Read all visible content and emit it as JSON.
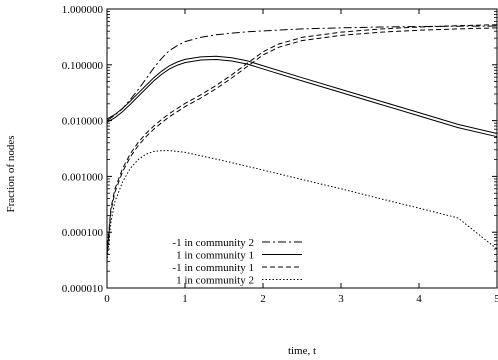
{
  "chart_data": {
    "type": "line",
    "xlabel": "time, t",
    "ylabel": "Fraction of nodes",
    "xlim": [
      0,
      5
    ],
    "ylim": [
      1e-05,
      1
    ],
    "yscale": "log",
    "grid": false,
    "legend_position": "bottom-left",
    "x_ticks": [
      "0",
      "1",
      "2",
      "3",
      "4",
      "5"
    ],
    "y_ticks": [
      "0.000010",
      "0.000100",
      "0.001000",
      "0.010000",
      "0.100000",
      "1.000000"
    ],
    "series": [
      {
        "name": "-1 in community 2",
        "dash": "dashdot",
        "points": [
          [
            0.0,
            0.01
          ],
          [
            0.1,
            0.0125
          ],
          [
            0.2,
            0.0165
          ],
          [
            0.3,
            0.024
          ],
          [
            0.4,
            0.036
          ],
          [
            0.5,
            0.056
          ],
          [
            0.6,
            0.088
          ],
          [
            0.7,
            0.13
          ],
          [
            0.8,
            0.18
          ],
          [
            0.9,
            0.22
          ],
          [
            1.0,
            0.26
          ],
          [
            1.2,
            0.31
          ],
          [
            1.4,
            0.345
          ],
          [
            1.6,
            0.37
          ],
          [
            1.8,
            0.39
          ],
          [
            2.0,
            0.405
          ],
          [
            2.5,
            0.44
          ],
          [
            3.0,
            0.46
          ],
          [
            3.5,
            0.475
          ],
          [
            4.0,
            0.485
          ],
          [
            4.5,
            0.492
          ],
          [
            5.0,
            0.495
          ]
        ]
      },
      {
        "name": "1 in community 1",
        "dash": "solid",
        "double": true,
        "points": [
          [
            0.0,
            0.01
          ],
          [
            0.1,
            0.012
          ],
          [
            0.2,
            0.0155
          ],
          [
            0.3,
            0.021
          ],
          [
            0.4,
            0.029
          ],
          [
            0.5,
            0.04
          ],
          [
            0.6,
            0.055
          ],
          [
            0.7,
            0.072
          ],
          [
            0.8,
            0.09
          ],
          [
            0.9,
            0.105
          ],
          [
            1.0,
            0.117
          ],
          [
            1.2,
            0.13
          ],
          [
            1.4,
            0.133
          ],
          [
            1.6,
            0.125
          ],
          [
            1.8,
            0.11
          ],
          [
            2.0,
            0.09
          ],
          [
            2.5,
            0.055
          ],
          [
            3.0,
            0.034
          ],
          [
            3.5,
            0.021
          ],
          [
            4.0,
            0.013
          ],
          [
            4.5,
            0.008
          ],
          [
            5.0,
            0.0055
          ]
        ]
      },
      {
        "name": "-1 in community 1",
        "dash": "dashed",
        "double": true,
        "points": [
          [
            0.0,
            4e-05
          ],
          [
            0.05,
            0.00025
          ],
          [
            0.1,
            0.00055
          ],
          [
            0.2,
            0.0013
          ],
          [
            0.3,
            0.0024
          ],
          [
            0.4,
            0.0038
          ],
          [
            0.5,
            0.0055
          ],
          [
            0.6,
            0.0075
          ],
          [
            0.7,
            0.0098
          ],
          [
            0.8,
            0.0125
          ],
          [
            1.0,
            0.019
          ],
          [
            1.2,
            0.027
          ],
          [
            1.4,
            0.04
          ],
          [
            1.6,
            0.062
          ],
          [
            1.8,
            0.1
          ],
          [
            2.0,
            0.16
          ],
          [
            2.2,
            0.22
          ],
          [
            2.5,
            0.29
          ],
          [
            3.0,
            0.36
          ],
          [
            3.5,
            0.41
          ],
          [
            4.0,
            0.445
          ],
          [
            4.5,
            0.47
          ],
          [
            5.0,
            0.49
          ]
        ]
      },
      {
        "name": "1 in community 2",
        "dash": "dotted",
        "points": [
          [
            0.0,
            3e-05
          ],
          [
            0.05,
            0.00015
          ],
          [
            0.1,
            0.00035
          ],
          [
            0.2,
            0.0008
          ],
          [
            0.3,
            0.0014
          ],
          [
            0.4,
            0.002
          ],
          [
            0.5,
            0.0025
          ],
          [
            0.6,
            0.0028
          ],
          [
            0.7,
            0.0029
          ],
          [
            0.8,
            0.0029
          ],
          [
            0.9,
            0.0028
          ],
          [
            1.0,
            0.0027
          ],
          [
            1.5,
            0.0019
          ],
          [
            2.0,
            0.0013
          ],
          [
            2.5,
            0.00088
          ],
          [
            3.0,
            0.0006
          ],
          [
            3.5,
            0.0004
          ],
          [
            4.0,
            0.00027
          ],
          [
            4.5,
            0.00018
          ],
          [
            5.0,
            5e-05
          ]
        ]
      }
    ]
  }
}
